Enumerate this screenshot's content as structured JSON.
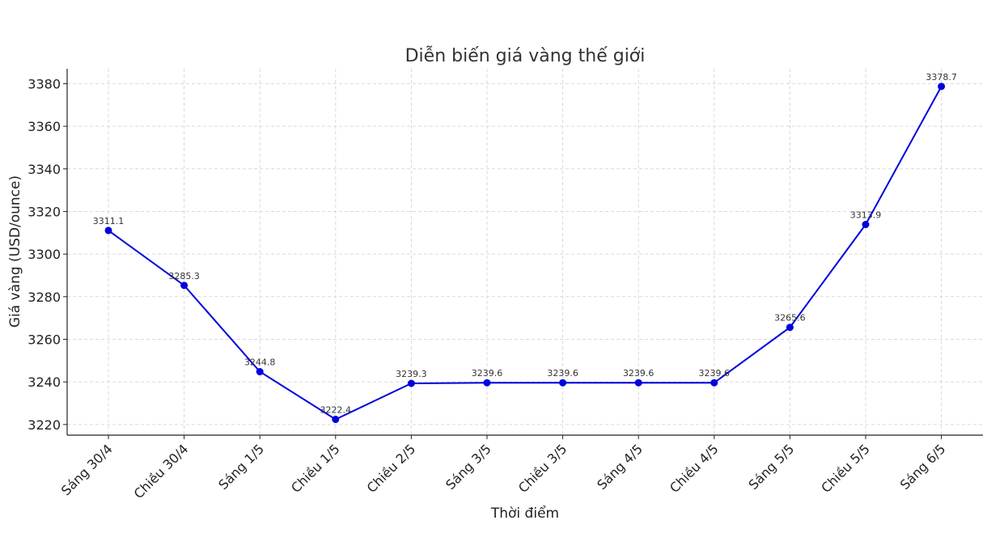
{
  "chart_data": {
    "type": "line",
    "title": "Diễn biến giá vàng thế giới",
    "xlabel": "Thời điểm",
    "ylabel": "Giá vàng (USD/ounce)",
    "categories": [
      "Sáng 30/4",
      "Chiều 30/4",
      "Sáng 1/5",
      "Chiều 1/5",
      "Chiều 2/5",
      "Sáng 3/5",
      "Chiều 3/5",
      "Sáng 4/5",
      "Chiều 4/5",
      "Sáng 5/5",
      "Chiều 5/5",
      "Sáng 6/5"
    ],
    "series": [
      {
        "values": [
          3311.1,
          3285.3,
          3244.8,
          3222.4,
          3239.3,
          3239.6,
          3239.6,
          3239.6,
          3239.6,
          3265.6,
          3313.9,
          3378.7
        ],
        "labels": [
          "3311.1",
          "3285.3",
          "3244.8",
          "3222.4",
          "3239.3",
          "3239.6",
          "3239.6",
          "3239.6",
          "3239.6",
          "3265.6",
          "3313.9",
          "3378.7"
        ],
        "color": "#0000dd"
      }
    ],
    "ylim": [
      3215,
      3387
    ],
    "yticks": [
      3220,
      3240,
      3260,
      3280,
      3300,
      3320,
      3340,
      3360,
      3380
    ],
    "ytick_labels": [
      "3220",
      "3240",
      "3260",
      "3280",
      "3300",
      "3320",
      "3340",
      "3360",
      "3380"
    ],
    "grid": true,
    "legend": "none"
  }
}
